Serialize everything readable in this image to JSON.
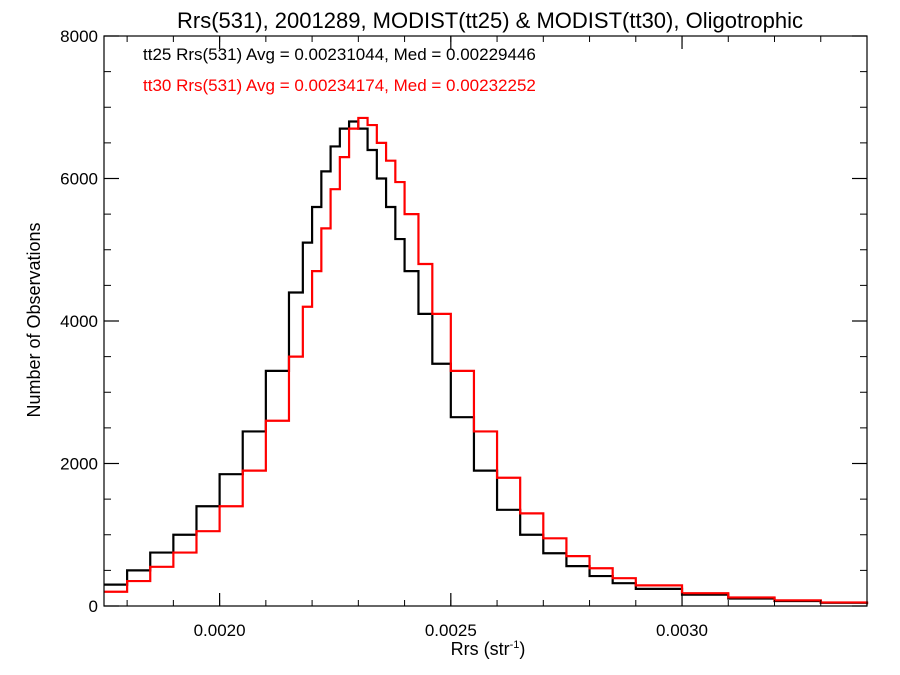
{
  "chart_data": {
    "type": "histogram",
    "title": "Rrs(531), 2001289, MODIST(tt25) & MODIST(tt30), Oligotrophic",
    "xlabel_base": "Rrs (str",
    "xlabel_sup": "-1",
    "xlabel_close": ")",
    "ylabel": "Number of Observations",
    "xlim": [
      0.00175,
      0.0034
    ],
    "ylim": [
      0,
      8000
    ],
    "x_ticks": [
      0.002,
      0.0025,
      0.003
    ],
    "x_tick_labels": [
      "0.0020",
      "0.0025",
      "0.0030"
    ],
    "x_minor_step": 0.0001,
    "y_ticks": [
      0,
      2000,
      4000,
      6000,
      8000
    ],
    "y_tick_labels": [
      "0",
      "2000",
      "4000",
      "6000",
      "8000"
    ],
    "y_minor_step": 500,
    "annotations": [
      {
        "text": "tt25 Rrs(531) Avg = 0.00231044, Med = 0.00229446",
        "color": "#000000"
      },
      {
        "text": "tt30 Rrs(531) Avg = 0.00234174, Med = 0.00232252",
        "color": "#ff0000"
      }
    ],
    "series": [
      {
        "color": "#000000",
        "x": [
          0.00175,
          0.0018,
          0.00185,
          0.0019,
          0.00195,
          0.002,
          0.00205,
          0.0021,
          0.00215,
          0.00218,
          0.0022,
          0.00222,
          0.00224,
          0.00226,
          0.00228,
          0.0023,
          0.00232,
          0.00234,
          0.00236,
          0.00238,
          0.0024,
          0.00243,
          0.00246,
          0.0025,
          0.00255,
          0.0026,
          0.00265,
          0.0027,
          0.00275,
          0.0028,
          0.00285,
          0.0029,
          0.003,
          0.0031,
          0.0032,
          0.0033,
          0.0034
        ],
        "y": [
          300,
          500,
          750,
          1000,
          1400,
          1850,
          2450,
          3300,
          4400,
          5100,
          5600,
          6100,
          6450,
          6700,
          6800,
          6700,
          6400,
          6000,
          5600,
          5150,
          4700,
          4100,
          3400,
          2650,
          1900,
          1350,
          1000,
          740,
          560,
          420,
          320,
          240,
          160,
          105,
          70,
          45,
          25
        ]
      },
      {
        "color": "#ff0000",
        "x": [
          0.00175,
          0.0018,
          0.00185,
          0.0019,
          0.00195,
          0.002,
          0.00205,
          0.0021,
          0.00215,
          0.00218,
          0.0022,
          0.00222,
          0.00224,
          0.00226,
          0.00228,
          0.0023,
          0.00232,
          0.00234,
          0.00236,
          0.00238,
          0.0024,
          0.00243,
          0.00246,
          0.0025,
          0.00255,
          0.0026,
          0.00265,
          0.0027,
          0.00275,
          0.0028,
          0.00285,
          0.0029,
          0.003,
          0.0031,
          0.0032,
          0.0033,
          0.0034
        ],
        "y": [
          200,
          350,
          550,
          750,
          1050,
          1400,
          1900,
          2600,
          3500,
          4200,
          4700,
          5300,
          5850,
          6300,
          6700,
          6850,
          6750,
          6500,
          6250,
          5950,
          5500,
          4800,
          4100,
          3300,
          2450,
          1800,
          1300,
          950,
          700,
          530,
          390,
          290,
          180,
          120,
          80,
          50,
          30
        ]
      }
    ]
  }
}
